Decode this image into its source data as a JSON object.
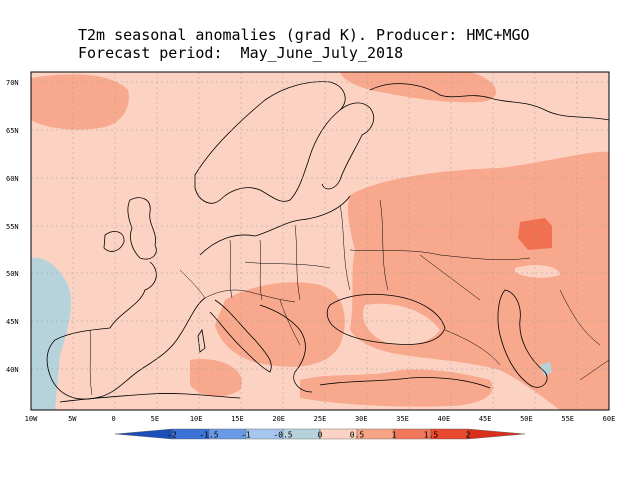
{
  "title": {
    "line1": "T2m seasonal anomalies (grad K). Producer: HMC+MGO",
    "line2": "Forecast period:  May_June_July_2018"
  },
  "map": {
    "lat_labels": [
      "70N",
      "65N",
      "60N",
      "55N",
      "50N",
      "45N",
      "40N"
    ],
    "lon_labels": [
      "10W",
      "5W",
      "0",
      "5E",
      "10E",
      "15E",
      "20E",
      "25E",
      "30E",
      "35E",
      "40E",
      "45E",
      "50E",
      "55E",
      "60E"
    ],
    "background_color": "#fcd2c3"
  },
  "colorbar": {
    "labels": [
      "-2",
      "-1.5",
      "-1",
      "-0.5",
      "0",
      "0.5",
      "1",
      "1.5",
      "2"
    ],
    "colors": [
      "#1c4fb8",
      "#3b72d6",
      "#6a9ae6",
      "#a7c6ee",
      "#b6d2db",
      "#fcd2c3",
      "#f7a486",
      "#f1775a",
      "#e9492e",
      "#d7301c"
    ]
  }
}
